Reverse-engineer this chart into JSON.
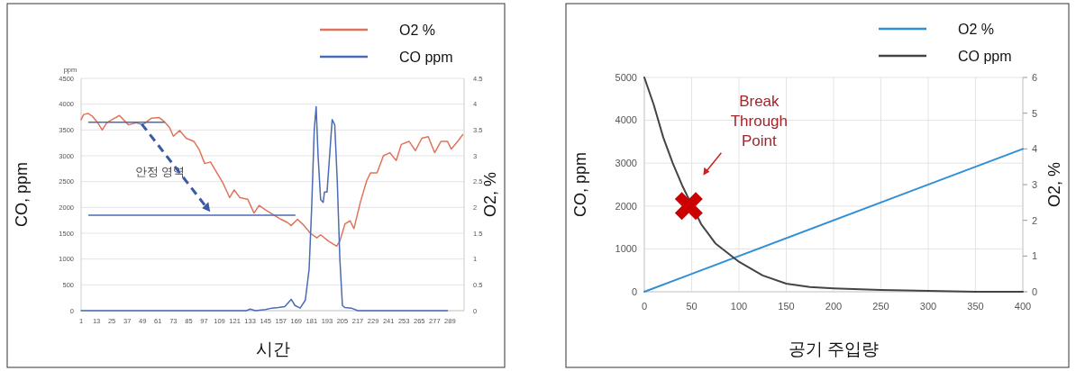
{
  "chart_data": [
    {
      "type": "line",
      "xlabel": "시간",
      "ylabel": "CO, ppm",
      "y2label": "O2, %",
      "legend": "top right",
      "grid": "y",
      "xlim": [
        1,
        300
      ],
      "xticks": [
        1,
        13,
        25,
        37,
        49,
        61,
        73,
        85,
        97,
        109,
        121,
        133,
        145,
        157,
        169,
        181,
        193,
        205,
        217,
        229,
        241,
        253,
        265,
        277,
        289
      ],
      "ylim": [
        0,
        4500
      ],
      "yticks": [
        0,
        500,
        1000,
        1500,
        2000,
        2500,
        3000,
        3500,
        4000,
        4500
      ],
      "y2lim": [
        0,
        4.5
      ],
      "y2ticks": [
        0,
        0.5,
        1,
        1.5,
        2,
        2.5,
        3,
        3.5,
        4,
        4.5
      ],
      "annotations": [
        "ppm",
        "안정 영역"
      ],
      "series": [
        {
          "name": "O2 %",
          "color": "#e0745a",
          "axis": "y2",
          "x": [
            1,
            3,
            6.6,
            10,
            14,
            17.5,
            21,
            25,
            31,
            34,
            38,
            44,
            49,
            56,
            62,
            66,
            70,
            73,
            78,
            83,
            89,
            93,
            97.5,
            102,
            107,
            112,
            117,
            120.5,
            125,
            131,
            136,
            140,
            145,
            151,
            157,
            162,
            165,
            170,
            175,
            180,
            185,
            188,
            194,
            200.5,
            203,
            207,
            211,
            214,
            219,
            224,
            227,
            232,
            237,
            242,
            247,
            251,
            257,
            262,
            267,
            272,
            277,
            282,
            287,
            290,
            295,
            299
          ],
          "values": [
            3.7,
            3.8,
            3.82,
            3.76,
            3.64,
            3.5,
            3.64,
            3.7,
            3.78,
            3.7,
            3.6,
            3.64,
            3.6,
            3.73,
            3.74,
            3.66,
            3.55,
            3.38,
            3.49,
            3.34,
            3.28,
            3.13,
            2.85,
            2.88,
            2.67,
            2.46,
            2.19,
            2.34,
            2.19,
            2.16,
            1.89,
            2.04,
            1.95,
            1.86,
            1.77,
            1.71,
            1.65,
            1.77,
            1.65,
            1.5,
            1.41,
            1.47,
            1.35,
            1.25,
            1.35,
            1.68,
            1.74,
            1.59,
            2.1,
            2.52,
            2.67,
            2.67,
            3.0,
            3.06,
            2.91,
            3.22,
            3.28,
            3.1,
            3.34,
            3.37,
            3.06,
            3.28,
            3.28,
            3.13,
            3.28,
            3.41
          ]
        },
        {
          "name": "CO ppm",
          "color": "#4a6bb5",
          "x": [
            1,
            130,
            133,
            137,
            145,
            150,
            155,
            160,
            165,
            168,
            172,
            176,
            179,
            181,
            183,
            184.5,
            186,
            188,
            190,
            191,
            193,
            195,
            197,
            199,
            201,
            203,
            205,
            207,
            212,
            217,
            287
          ],
          "values": [
            0,
            0,
            30,
            0,
            20,
            50,
            60,
            80,
            220,
            100,
            50,
            200,
            800,
            2000,
            3500,
            3950,
            3000,
            2150,
            2100,
            2300,
            2300,
            3000,
            3700,
            3600,
            2500,
            1000,
            100,
            60,
            50,
            0,
            0
          ]
        },
        {
          "color": "#4a6bb5",
          "x": [
            7,
            66
          ],
          "values": [
            3650,
            3650
          ]
        },
        {
          "color": "#4a6bb5",
          "x": [
            7,
            168
          ],
          "values": [
            1850,
            1850
          ]
        }
      ]
    },
    {
      "type": "line",
      "xlabel": "공기 주입량",
      "ylabel": "CO, ppm",
      "y2label": "O2, %",
      "legend": "top right",
      "grid": true,
      "xlim": [
        0,
        400
      ],
      "xticks": [
        0,
        50,
        100,
        150,
        200,
        250,
        300,
        350,
        400
      ],
      "ylim": [
        0,
        5000
      ],
      "yticks": [
        0,
        1000,
        2000,
        3000,
        4000,
        5000
      ],
      "y2lim": [
        0,
        6
      ],
      "y2ticks": [
        0,
        1,
        2,
        3,
        4,
        5,
        6
      ],
      "annotations": [
        "Break Through Point"
      ],
      "series": [
        {
          "name": "O2 %",
          "color": "#2e8fd6",
          "axis": "y2",
          "x": [
            0,
            400
          ],
          "values": [
            0,
            4
          ]
        },
        {
          "name": "CO ppm",
          "color": "#444444",
          "x": [
            0,
            10,
            20,
            30,
            40,
            50,
            60,
            75,
            100,
            125,
            150,
            175,
            200,
            250,
            300,
            350,
            400
          ],
          "values": [
            5000,
            4360,
            3600,
            3000,
            2480,
            null,
            1580,
            1130,
            700,
            380,
            190,
            110,
            80,
            40,
            20,
            0,
            0
          ]
        },
        {
          "type": "scatter",
          "marker": "cross",
          "color": "#cc0000",
          "x": [
            47
          ],
          "values": [
            2000
          ]
        }
      ]
    }
  ]
}
